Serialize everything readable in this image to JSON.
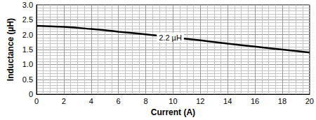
{
  "chart_data": {
    "type": "line",
    "x_label": "Current (A)",
    "y_label": "Inductance (µH)",
    "x": [
      0,
      2,
      4,
      6,
      8,
      10,
      12,
      14,
      16,
      18,
      20
    ],
    "values": [
      2.3,
      2.26,
      2.19,
      2.1,
      2.01,
      1.91,
      1.81,
      1.7,
      1.6,
      1.5,
      1.4
    ],
    "color": "#000000",
    "xlim": [
      0,
      20
    ],
    "xticks": [
      0,
      2,
      4,
      6,
      8,
      10,
      12,
      14,
      16,
      18,
      20
    ],
    "ylim": [
      0,
      3
    ],
    "yticks": [
      0,
      0.5,
      {
        "value": 1,
        "label": "1.0"
      },
      1.5,
      {
        "value": 2,
        "label": "2.0"
      },
      2.5,
      {
        "value": 3,
        "label": "3.0"
      }
    ],
    "grid": true,
    "annotations": [
      {
        "text": "2.2 µH",
        "x": 9.8,
        "y": 1.91
      }
    ]
  }
}
